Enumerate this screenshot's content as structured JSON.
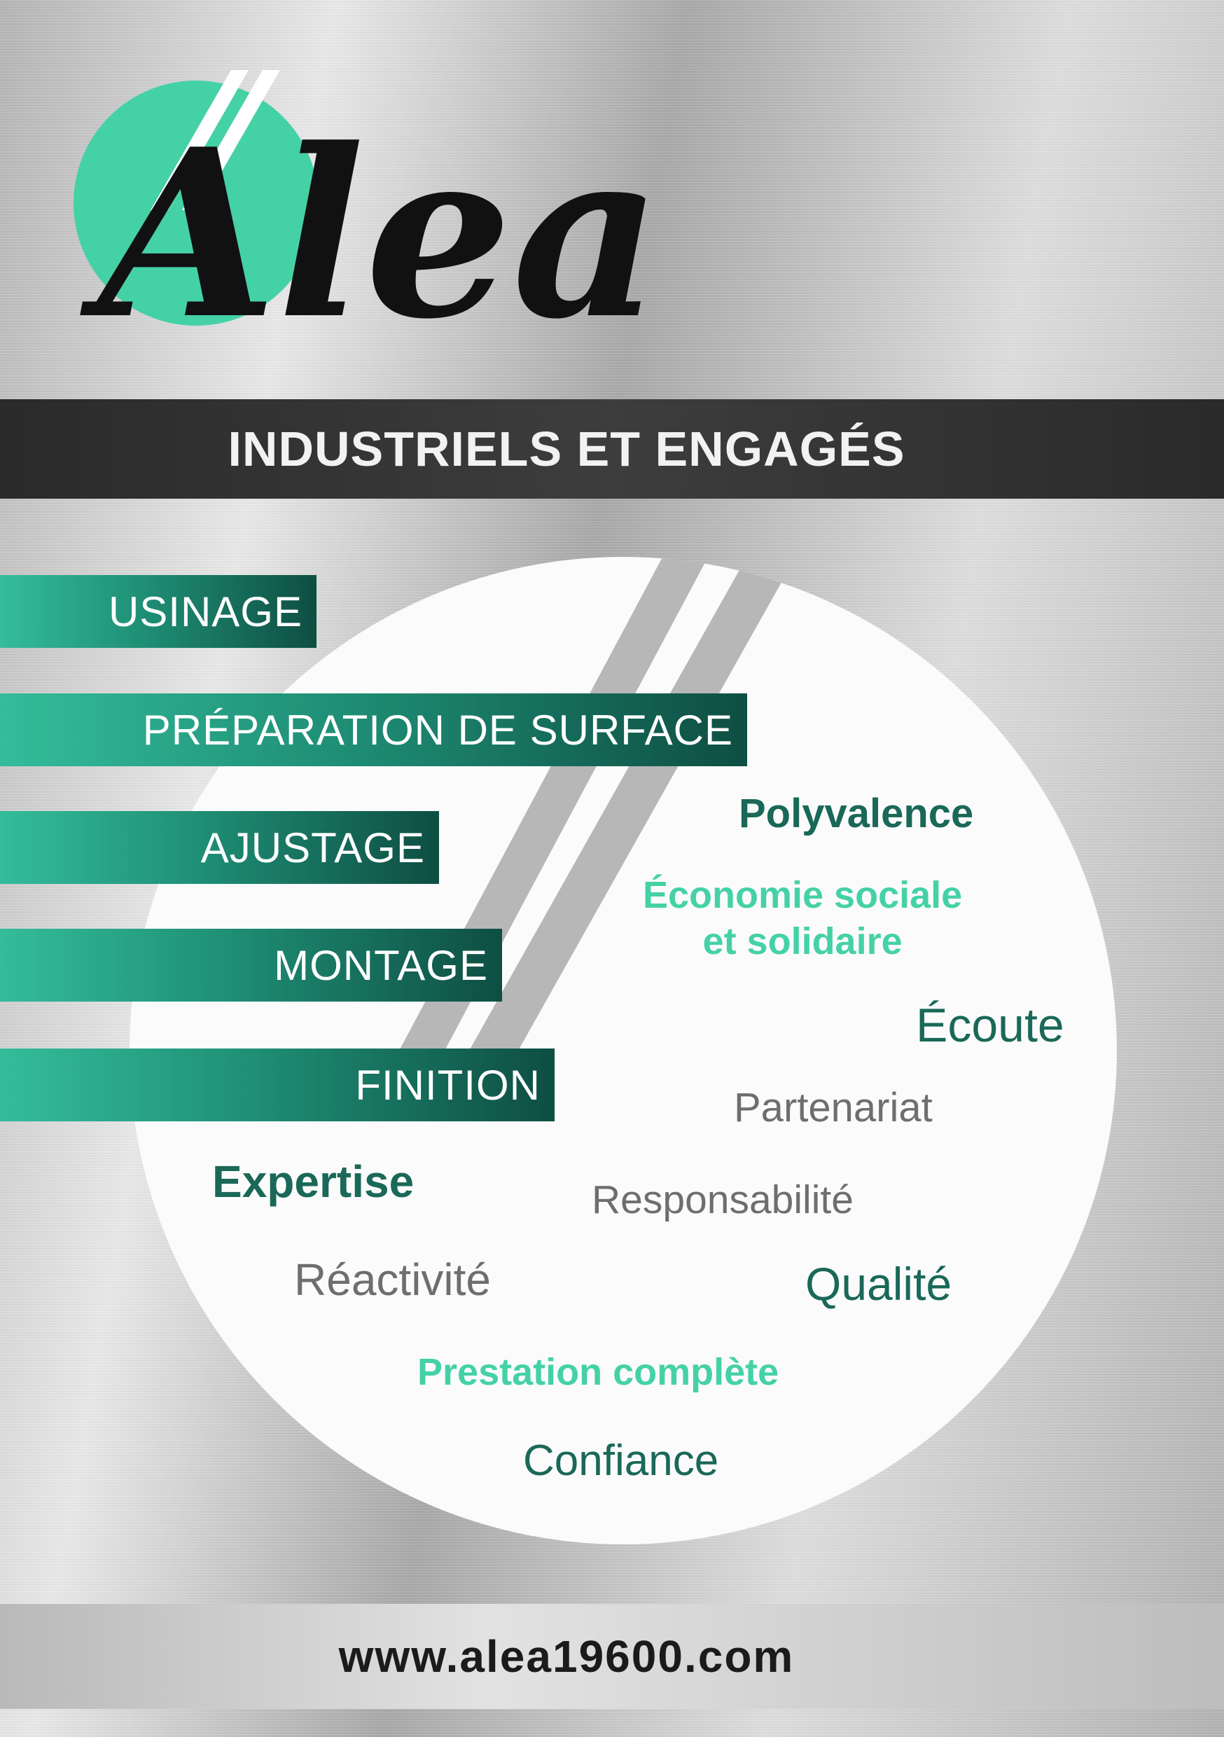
{
  "brand": {
    "logo_text": "Alea",
    "colors": {
      "mint": "#45d1a6",
      "teal": "#1a6858",
      "grey": "#6e6e6e",
      "band": "#333333"
    }
  },
  "tagline": "INDUSTRIELS ET ENGAGÉS",
  "services": [
    "USINAGE",
    "PRÉPARATION DE SURFACE",
    "AJUSTAGE",
    "MONTAGE",
    "FINITION"
  ],
  "values": {
    "polyvalence": "Polyvalence",
    "economie_line1": "Économie sociale",
    "economie_line2": "et solidaire",
    "ecoute": "Écoute",
    "partenariat": "Partenariat",
    "expertise": "Expertise",
    "responsabilite": "Responsabilité",
    "reactivite": "Réactivité",
    "qualite": "Qualité",
    "prestation": "Prestation complète",
    "confiance": "Confiance"
  },
  "footer": {
    "url": "www.alea19600.com"
  }
}
